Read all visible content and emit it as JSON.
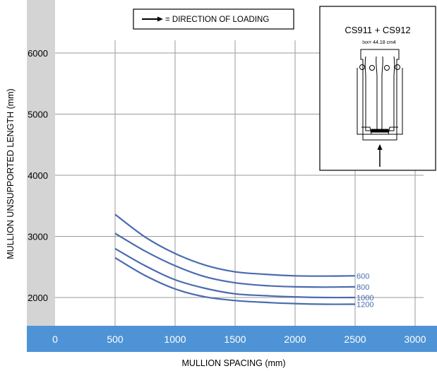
{
  "chart_data": {
    "type": "line",
    "legend": {
      "text": "= DIRECTION OF LOADING",
      "icon": "right-arrow-icon"
    },
    "xlabel": "MULLION SPACING (mm)",
    "ylabel": "MULLION UNSUPPORTED LENGTH (mm)",
    "xlim": [
      0,
      3000
    ],
    "ylim": [
      1600,
      6300
    ],
    "x_ticks": [
      "0",
      "500",
      "1000",
      "1500",
      "2000",
      "2500",
      "3000"
    ],
    "y_ticks": [
      "2000",
      "3000",
      "4000",
      "5000",
      "6000"
    ],
    "grid": true,
    "x_axis_band_color": "#4e93d6",
    "y_axis_band_color": "#d4d4d4",
    "series_color": "#4a6bb0",
    "series": [
      {
        "name": "600",
        "x": [
          500,
          750,
          1000,
          1250,
          1500,
          1750,
          2000,
          2250,
          2500
        ],
        "y": [
          3360,
          2990,
          2720,
          2530,
          2420,
          2380,
          2355,
          2350,
          2355
        ]
      },
      {
        "name": "800",
        "x": [
          500,
          750,
          1000,
          1250,
          1500,
          1750,
          2000,
          2250,
          2500
        ],
        "y": [
          3050,
          2760,
          2520,
          2340,
          2240,
          2195,
          2175,
          2170,
          2175
        ]
      },
      {
        "name": "1000",
        "x": [
          500,
          750,
          1000,
          1250,
          1500,
          1750,
          2000,
          2250,
          2500
        ],
        "y": [
          2800,
          2520,
          2290,
          2150,
          2060,
          2030,
          2010,
          2000,
          2000
        ]
      },
      {
        "name": "1200",
        "x": [
          500,
          750,
          1000,
          1250,
          1500,
          1750,
          2000,
          2250,
          2500
        ],
        "y": [
          2650,
          2360,
          2140,
          2010,
          1950,
          1920,
          1900,
          1890,
          1890
        ]
      }
    ],
    "inset": {
      "title": "CS911 + CS912",
      "subtitle": "Ixx= 44.18 cm4"
    }
  }
}
